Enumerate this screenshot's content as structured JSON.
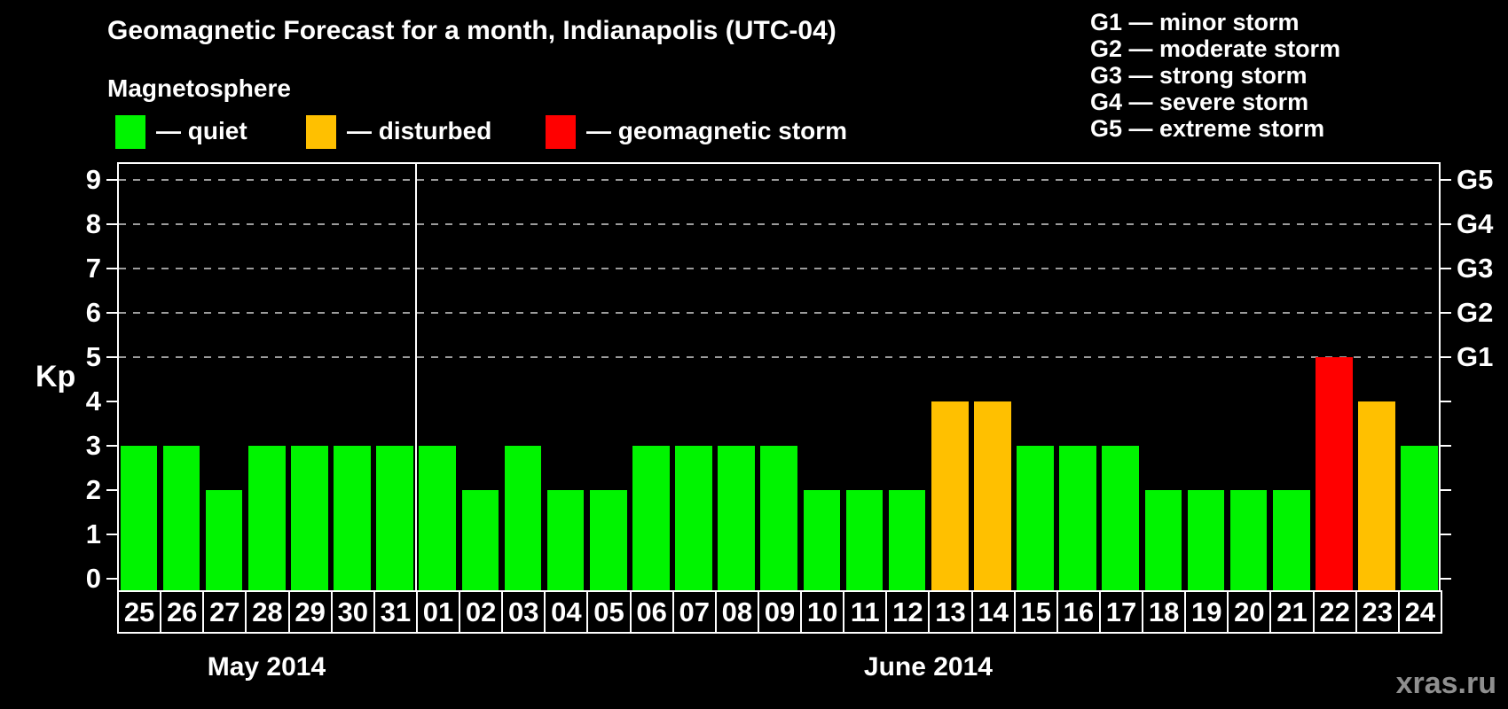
{
  "subtitle": "Magnetosphere",
  "legend": {
    "items": [
      {
        "label": "— quiet",
        "state": "quiet",
        "color": "#00f400"
      },
      {
        "label": "— disturbed",
        "state": "disturbed",
        "color": "#ffc000"
      },
      {
        "label": "— geomagnetic storm",
        "state": "storm",
        "color": "#ff0000"
      }
    ]
  },
  "g_scale_legend": [
    "G1 — minor storm",
    "G2 — moderate storm",
    "G3 — strong storm",
    "G4 — severe storm",
    "G5 — extreme storm"
  ],
  "watermark": "xras.ru",
  "chart_data": {
    "type": "bar",
    "title": "Geomagnetic Forecast for a month, Indianapolis (UTC-04)",
    "ylabel": "Kp",
    "xlabel": "",
    "ylim": [
      0,
      9
    ],
    "yticks": [
      0,
      1,
      2,
      3,
      4,
      5,
      6,
      7,
      8,
      9
    ],
    "gridline_levels": [
      5,
      6,
      7,
      8,
      9
    ],
    "grid": "horizontal dashed lines at Kp 5-9 (G1-G5 storm levels) only",
    "legend_position": "top-left",
    "right_axis": [
      {
        "kp": 5,
        "label": "G1"
      },
      {
        "kp": 6,
        "label": "G2"
      },
      {
        "kp": 7,
        "label": "G3"
      },
      {
        "kp": 8,
        "label": "G4"
      },
      {
        "kp": 9,
        "label": "G5"
      }
    ],
    "colors": {
      "quiet": "#00f400",
      "disturbed": "#ffc000",
      "storm": "#ff0000"
    },
    "months": [
      {
        "label": "May 2014",
        "day_count": 7
      },
      {
        "label": "June 2014",
        "day_count": 24
      }
    ],
    "days": [
      {
        "day": "25",
        "kp": 3,
        "state": "quiet"
      },
      {
        "day": "26",
        "kp": 3,
        "state": "quiet"
      },
      {
        "day": "27",
        "kp": 2,
        "state": "quiet"
      },
      {
        "day": "28",
        "kp": 3,
        "state": "quiet"
      },
      {
        "day": "29",
        "kp": 3,
        "state": "quiet"
      },
      {
        "day": "30",
        "kp": 3,
        "state": "quiet"
      },
      {
        "day": "31",
        "kp": 3,
        "state": "quiet"
      },
      {
        "day": "01",
        "kp": 3,
        "state": "quiet"
      },
      {
        "day": "02",
        "kp": 2,
        "state": "quiet"
      },
      {
        "day": "03",
        "kp": 3,
        "state": "quiet"
      },
      {
        "day": "04",
        "kp": 2,
        "state": "quiet"
      },
      {
        "day": "05",
        "kp": 2,
        "state": "quiet"
      },
      {
        "day": "06",
        "kp": 3,
        "state": "quiet"
      },
      {
        "day": "07",
        "kp": 3,
        "state": "quiet"
      },
      {
        "day": "08",
        "kp": 3,
        "state": "quiet"
      },
      {
        "day": "09",
        "kp": 3,
        "state": "quiet"
      },
      {
        "day": "10",
        "kp": 2,
        "state": "quiet"
      },
      {
        "day": "11",
        "kp": 2,
        "state": "quiet"
      },
      {
        "day": "12",
        "kp": 2,
        "state": "quiet"
      },
      {
        "day": "13",
        "kp": 4,
        "state": "disturbed"
      },
      {
        "day": "14",
        "kp": 4,
        "state": "disturbed"
      },
      {
        "day": "15",
        "kp": 3,
        "state": "quiet"
      },
      {
        "day": "16",
        "kp": 3,
        "state": "quiet"
      },
      {
        "day": "17",
        "kp": 3,
        "state": "quiet"
      },
      {
        "day": "18",
        "kp": 2,
        "state": "quiet"
      },
      {
        "day": "19",
        "kp": 2,
        "state": "quiet"
      },
      {
        "day": "20",
        "kp": 2,
        "state": "quiet"
      },
      {
        "day": "21",
        "kp": 2,
        "state": "quiet"
      },
      {
        "day": "22",
        "kp": 5,
        "state": "storm"
      },
      {
        "day": "23",
        "kp": 4,
        "state": "disturbed"
      },
      {
        "day": "24",
        "kp": 3,
        "state": "quiet"
      }
    ]
  }
}
